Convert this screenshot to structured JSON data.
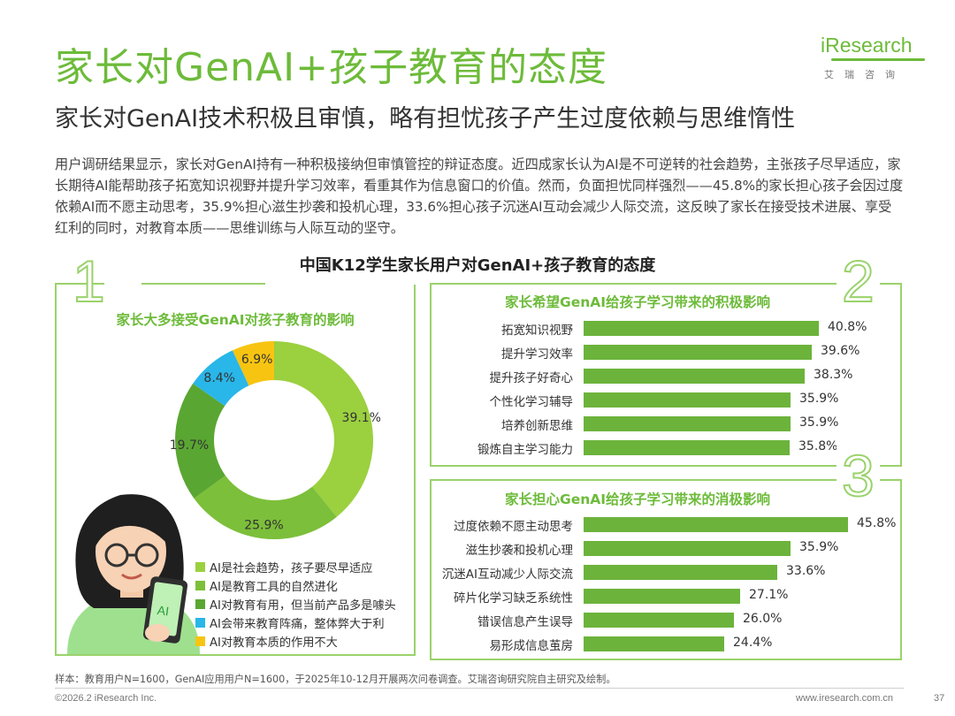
{
  "header": {
    "title": "家长对GenAI+孩子教育的态度",
    "subtitle": "家长对GenAI技术积极且审慎，略有担忧孩子产生过度依赖与思维惰性",
    "logo_text": "iResearch",
    "logo_sub": "艾瑞咨询"
  },
  "intro": "用户调研结果显示，家长对GenAI持有一种积极接纳但审慎管控的辩证态度。近四成家长认为AI是不可逆转的社会趋势，主张孩子尽早适应，家长期待AI能帮助孩子拓宽知识视野并提升学习效率，看重其作为信息窗口的价值。然而，负面担忧同样强烈——45.8%的家长担心孩子会因过度依赖AI而不愿主动思考，35.9%担心滋生抄袭和投机心理，33.6%担心孩子沉迷AI互动会减少人际交流，这反映了家长在接受技术进展、享受红利的同时，对教育本质——思维训练与人际互动的坚守。",
  "center_title": "中国K12学生家长用户对GenAI+孩子教育的态度",
  "section_numbers": [
    "1",
    "2",
    "3"
  ],
  "colors": {
    "accent": "#6dbb3a",
    "bar": "#6cb33b",
    "donut": [
      "#9bd03f",
      "#7cbf3a",
      "#5aa632",
      "#29b6e8",
      "#f7c411"
    ]
  },
  "chart_data": [
    {
      "type": "pie",
      "title": "家长大多接受GenAI对孩子教育的影响",
      "categories": [
        "AI是社会趋势，孩子要尽早适应",
        "AI是教育工具的自然进化",
        "AI对教育有用，但当前产品多是噱头",
        "AI会带来教育阵痛，整体弊大于利",
        "AI对教育本质的作用不大"
      ],
      "values": [
        39.1,
        25.9,
        19.7,
        8.4,
        6.9
      ],
      "value_labels": [
        "39.1%",
        "25.9%",
        "19.7%",
        "8.4%",
        "6.9%"
      ]
    },
    {
      "type": "bar",
      "title": "家长希望GenAI给孩子学习带来的积极影响",
      "categories": [
        "拓宽知识视野",
        "提升学习效率",
        "提升孩子好奇心",
        "个性化学习辅导",
        "培养创新思维",
        "锻炼自主学习能力"
      ],
      "values": [
        40.8,
        39.6,
        38.3,
        35.9,
        35.9,
        35.8
      ],
      "value_labels": [
        "40.8%",
        "39.6%",
        "38.3%",
        "35.9%",
        "35.9%",
        "35.8%"
      ]
    },
    {
      "type": "bar",
      "title": "家长担心GenAI给孩子学习带来的消极影响",
      "categories": [
        "过度依赖不愿主动思考",
        "滋生抄袭和投机心理",
        "沉迷AI互动减少人际交流",
        "碎片化学习缺乏系统性",
        "错误信息产生误导",
        "易形成信息茧房"
      ],
      "values": [
        45.8,
        35.9,
        33.6,
        27.1,
        26.0,
        24.4
      ],
      "value_labels": [
        "45.8%",
        "35.9%",
        "33.6%",
        "27.1%",
        "26.0%",
        "24.4%"
      ]
    }
  ],
  "phone_label": "AI",
  "footer": {
    "sample": "样本：教育用户N=1600，GenAI应用用户N=1600，于2025年10-12月开展两次问卷调查。艾瑞咨询研究院自主研究及绘制。",
    "copyright": "©2026.2 iResearch Inc.",
    "site": "www.iresearch.com.cn",
    "page": "37"
  }
}
